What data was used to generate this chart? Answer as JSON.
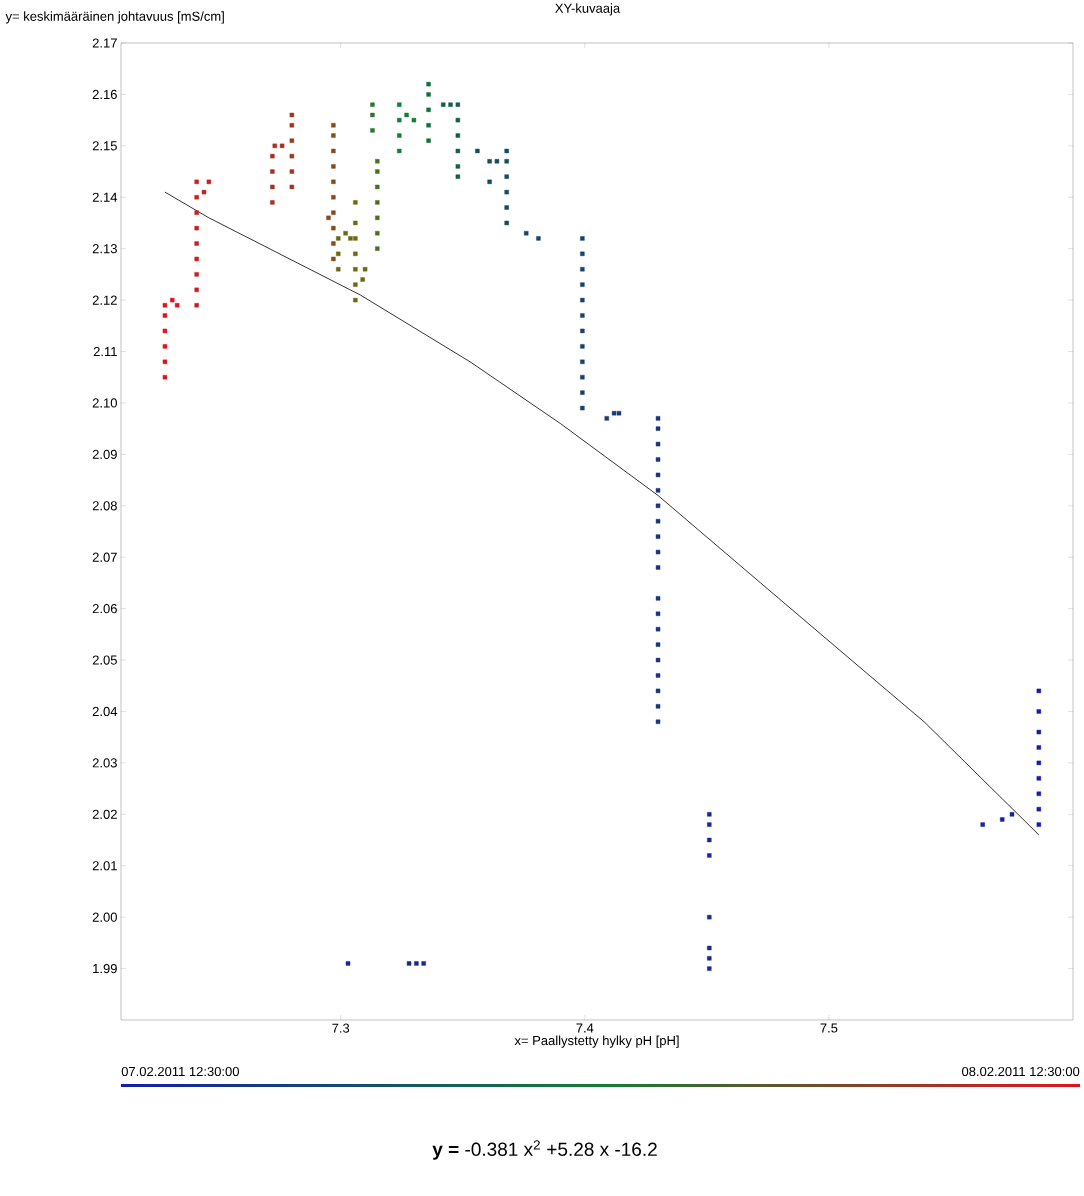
{
  "chart_data": {
    "type": "scatter",
    "title": "XY-kuvaaja",
    "xlabel": "x= Paallystetty hylky pH [pH]",
    "ylabel": "y= keskimääräinen johtavuus [mS/cm]",
    "xlim": [
      7.21,
      7.6
    ],
    "xticks": [
      7.3,
      7.4,
      7.5
    ],
    "ylim": [
      1.98,
      2.17
    ],
    "yticks": [
      1.99,
      {
        "value": 2,
        "label": "2.00"
      },
      2.01,
      2.02,
      2.03,
      2.04,
      2.05,
      2.06,
      2.07,
      2.08,
      2.09,
      {
        "value": 2.1,
        "label": "2.10"
      },
      2.11,
      2.12,
      2.13,
      2.14,
      2.15,
      2.16,
      2.17
    ],
    "marker": "square",
    "series": [
      {
        "x": [
          7.228,
          7.228,
          7.228,
          7.228,
          7.228,
          7.228,
          7.231,
          7.233,
          7.241,
          7.241,
          7.241,
          7.241,
          7.241,
          7.241,
          7.241,
          7.241,
          7.241,
          7.244,
          7.246,
          7.272,
          7.272,
          7.272,
          7.272,
          7.273,
          7.276,
          7.28,
          7.28,
          7.28,
          7.28,
          7.28,
          7.28,
          7.297,
          7.297,
          7.297,
          7.297,
          7.297,
          7.297,
          7.297,
          7.297,
          7.297,
          7.297,
          7.295,
          7.299,
          7.299,
          7.299,
          7.302,
          7.304,
          7.306,
          7.306,
          7.306,
          7.306,
          7.306,
          7.306,
          7.306,
          7.309,
          7.31,
          7.315,
          7.315,
          7.315,
          7.315,
          7.315,
          7.315,
          7.315,
          7.313,
          7.313,
          7.313,
          7.324,
          7.324,
          7.324,
          7.324,
          7.327,
          7.33,
          7.336,
          7.336,
          7.336,
          7.336,
          7.336,
          7.342,
          7.345,
          7.348,
          7.348,
          7.348,
          7.348,
          7.348,
          7.348,
          7.356,
          7.361,
          7.364,
          7.361,
          7.368,
          7.368,
          7.368,
          7.368,
          7.368,
          7.368,
          7.376,
          7.381,
          7.399,
          7.399,
          7.399,
          7.399,
          7.399,
          7.399,
          7.399,
          7.399,
          7.399,
          7.399,
          7.399,
          7.399,
          7.409,
          7.412,
          7.414,
          7.43,
          7.43,
          7.43,
          7.43,
          7.43,
          7.43,
          7.43,
          7.43,
          7.43,
          7.43,
          7.43,
          7.43,
          7.43,
          7.43,
          7.43,
          7.43,
          7.43,
          7.43,
          7.43,
          7.43,
          7.451,
          7.451,
          7.451,
          7.451,
          7.451,
          7.451,
          7.451,
          7.451,
          7.303,
          7.328,
          7.331,
          7.334,
          7.563,
          7.571,
          7.575,
          7.586,
          7.586,
          7.586,
          7.586,
          7.586,
          7.586,
          7.586,
          7.586,
          7.586
        ],
        "values": [
          2.105,
          2.108,
          2.111,
          2.114,
          2.117,
          2.119,
          2.12,
          2.119,
          2.119,
          2.122,
          2.125,
          2.128,
          2.131,
          2.134,
          2.137,
          2.14,
          2.143,
          2.141,
          2.143,
          2.139,
          2.142,
          2.145,
          2.148,
          2.15,
          2.15,
          2.142,
          2.145,
          2.148,
          2.151,
          2.154,
          2.156,
          2.128,
          2.131,
          2.134,
          2.137,
          2.14,
          2.143,
          2.146,
          2.149,
          2.152,
          2.154,
          2.136,
          2.126,
          2.129,
          2.132,
          2.133,
          2.132,
          2.12,
          2.123,
          2.126,
          2.129,
          2.132,
          2.135,
          2.139,
          2.124,
          2.126,
          2.13,
          2.133,
          2.136,
          2.139,
          2.142,
          2.145,
          2.147,
          2.153,
          2.156,
          2.158,
          2.149,
          2.152,
          2.155,
          2.158,
          2.156,
          2.155,
          2.151,
          2.154,
          2.157,
          2.16,
          2.162,
          2.158,
          2.158,
          2.158,
          2.155,
          2.152,
          2.149,
          2.146,
          2.144,
          2.149,
          2.147,
          2.147,
          2.143,
          2.135,
          2.138,
          2.141,
          2.144,
          2.147,
          2.149,
          2.133,
          2.132,
          2.099,
          2.102,
          2.105,
          2.108,
          2.111,
          2.114,
          2.117,
          2.12,
          2.123,
          2.126,
          2.129,
          2.132,
          2.097,
          2.098,
          2.098,
          2.038,
          2.041,
          2.044,
          2.047,
          2.05,
          2.053,
          2.056,
          2.059,
          2.062,
          2.068,
          2.071,
          2.074,
          2.077,
          2.08,
          2.083,
          2.086,
          2.089,
          2.092,
          2.095,
          2.097,
          2.012,
          2.015,
          2.018,
          2.02,
          2,
          1.99,
          1.992,
          1.994,
          1.991,
          1.991,
          1.991,
          1.991,
          2.018,
          2.019,
          2.02,
          2.018,
          2.021,
          2.024,
          2.027,
          2.03,
          2.033,
          2.036,
          2.04,
          2.044
        ],
        "colors": [
          "#e1141e",
          "#e1141e",
          "#e1141e",
          "#e1141e",
          "#e1141e",
          "#e1141e",
          "#e1141e",
          "#e1141e",
          "#c9201e",
          "#c9201e",
          "#c9201e",
          "#c9201e",
          "#c9201e",
          "#c9201e",
          "#c9201e",
          "#c9201e",
          "#c9201e",
          "#c9201e",
          "#c9201e",
          "#a9301e",
          "#a9301e",
          "#a9301e",
          "#a9301e",
          "#a9301e",
          "#a9301e",
          "#99381e",
          "#99381e",
          "#99381e",
          "#99381e",
          "#99381e",
          "#99381e",
          "#844b1b",
          "#844b1b",
          "#844b1b",
          "#844b1b",
          "#844b1b",
          "#844b1b",
          "#844b1b",
          "#844b1b",
          "#844b1b",
          "#844b1b",
          "#844b1b",
          "#696914",
          "#696914",
          "#696914",
          "#696914",
          "#696914",
          "#696914",
          "#696914",
          "#696914",
          "#696914",
          "#696914",
          "#696914",
          "#696914",
          "#696914",
          "#696914",
          "#497021",
          "#497021",
          "#497021",
          "#497021",
          "#497021",
          "#497021",
          "#497021",
          "#29782e",
          "#29782e",
          "#29782e",
          "#147d37",
          "#147d37",
          "#147d37",
          "#147d37",
          "#147d37",
          "#147d37",
          "#146e41",
          "#146e41",
          "#146e41",
          "#146e41",
          "#146e41",
          "#145f4b",
          "#145f4b",
          "#145f4b",
          "#145f4b",
          "#145f4b",
          "#145f4b",
          "#145f4b",
          "#145f4b",
          "#154d5a",
          "#154d5a",
          "#154d5a",
          "#154d5a",
          "#154b5f",
          "#154b5f",
          "#154b5f",
          "#154b5f",
          "#154b5f",
          "#154b5f",
          "#174664",
          "#174664",
          "#18416c",
          "#18416c",
          "#18416c",
          "#18416c",
          "#18416c",
          "#18416c",
          "#18416c",
          "#18416c",
          "#18416c",
          "#18416c",
          "#18416c",
          "#18416c",
          "#193c73",
          "#193c73",
          "#193c73",
          "#18367e",
          "#18367e",
          "#18367e",
          "#18367e",
          "#18367e",
          "#18367e",
          "#18367e",
          "#18367e",
          "#18367e",
          "#18367e",
          "#18367e",
          "#18367e",
          "#18367e",
          "#18367e",
          "#18367e",
          "#18367e",
          "#18367e",
          "#18367e",
          "#18367e",
          "#18367e",
          "#162a94",
          "#162a94",
          "#162a94",
          "#162a94",
          "#162a94",
          "#162a94",
          "#162a94",
          "#162a94",
          "#15279a",
          "#15279a",
          "#15279a",
          "#15279a",
          "#15249f",
          "#15249f",
          "#15249f",
          "#141eaa",
          "#141eaa",
          "#141eaa",
          "#141eaa",
          "#141eaa",
          "#141eaa",
          "#141eaa",
          "#141eaa",
          "#141eaa"
        ]
      },
      {
        "type": "line",
        "color": "#000000",
        "marker": "none",
        "x": [
          7.228,
          7.246,
          7.308,
          7.353,
          7.39,
          7.43,
          7.472,
          7.529,
          7.539,
          7.586
        ],
        "values": [
          2.141,
          2.136,
          2.121,
          2.108,
          2.096,
          2.082,
          2.065,
          2.042,
          2.038,
          2.016
        ]
      }
    ],
    "annotations": [
      "07.02.2011 12:30:00",
      "08.02.2011 12:30:00",
      "**y =** -0.381 x$^{2}$ +5.28 x -16.2"
    ]
  }
}
